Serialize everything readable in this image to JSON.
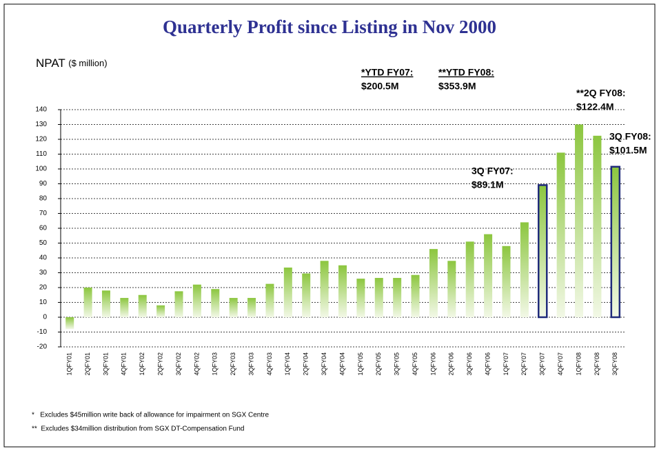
{
  "chart_data": {
    "type": "bar",
    "title": "Quarterly Profit since Listing in Nov 2000",
    "y_label": "NPAT",
    "y_unit": "($ million)",
    "categories": [
      "1QFY01",
      "2QFY01",
      "3QFY01",
      "4QFY01",
      "1QFY02",
      "2QFY02",
      "3QFY02",
      "4QFY02",
      "1QFY03",
      "2QFY03",
      "3QFY03",
      "4QFY03",
      "1QFY04",
      "2QFY04",
      "3QFY04",
      "4QFY04",
      "1QFY05",
      "2QFY05",
      "3QFY05",
      "4QFY05",
      "1QFY06",
      "2QFY06",
      "3QFY06",
      "4QFY06",
      "1QFY07",
      "2QFY07",
      "3QFY07",
      "4QFY07",
      "1QFY08",
      "2QFY08",
      "3QFY08"
    ],
    "values": [
      -8,
      20,
      18,
      13,
      15,
      8,
      17.5,
      22,
      19,
      13,
      13,
      22.5,
      33.5,
      29.5,
      38,
      35,
      26,
      26.5,
      26.5,
      28.5,
      46,
      38,
      51,
      56,
      48,
      64,
      89.1,
      111,
      130,
      122.4,
      101.5
    ],
    "color": "#8cc63f",
    "highlight_categories": [
      "3QFY07",
      "3QFY08"
    ],
    "highlight_color": "#1f2a7a",
    "ylim": [
      -20,
      140
    ],
    "yticks": [
      -20,
      -10,
      0,
      10,
      20,
      30,
      40,
      50,
      60,
      70,
      80,
      90,
      100,
      110,
      120,
      130,
      140
    ],
    "grid": true,
    "annotations": [
      {
        "title": "*YTD FY07:",
        "value": "$200.5M"
      },
      {
        "title": "**YTD FY08:",
        "value": "$353.9M"
      },
      {
        "title": "**2Q FY08:",
        "value": "$122.4M"
      },
      {
        "title": "3Q FY08:",
        "value": "$101.5M"
      },
      {
        "title": "3Q FY07:",
        "value": "$89.1M"
      }
    ],
    "footnotes": [
      "*   Excludes $45million write back of allowance for impairment on SGX Centre",
      "**  Excludes $34million distribution from SGX DT-Compensation Fund"
    ]
  }
}
